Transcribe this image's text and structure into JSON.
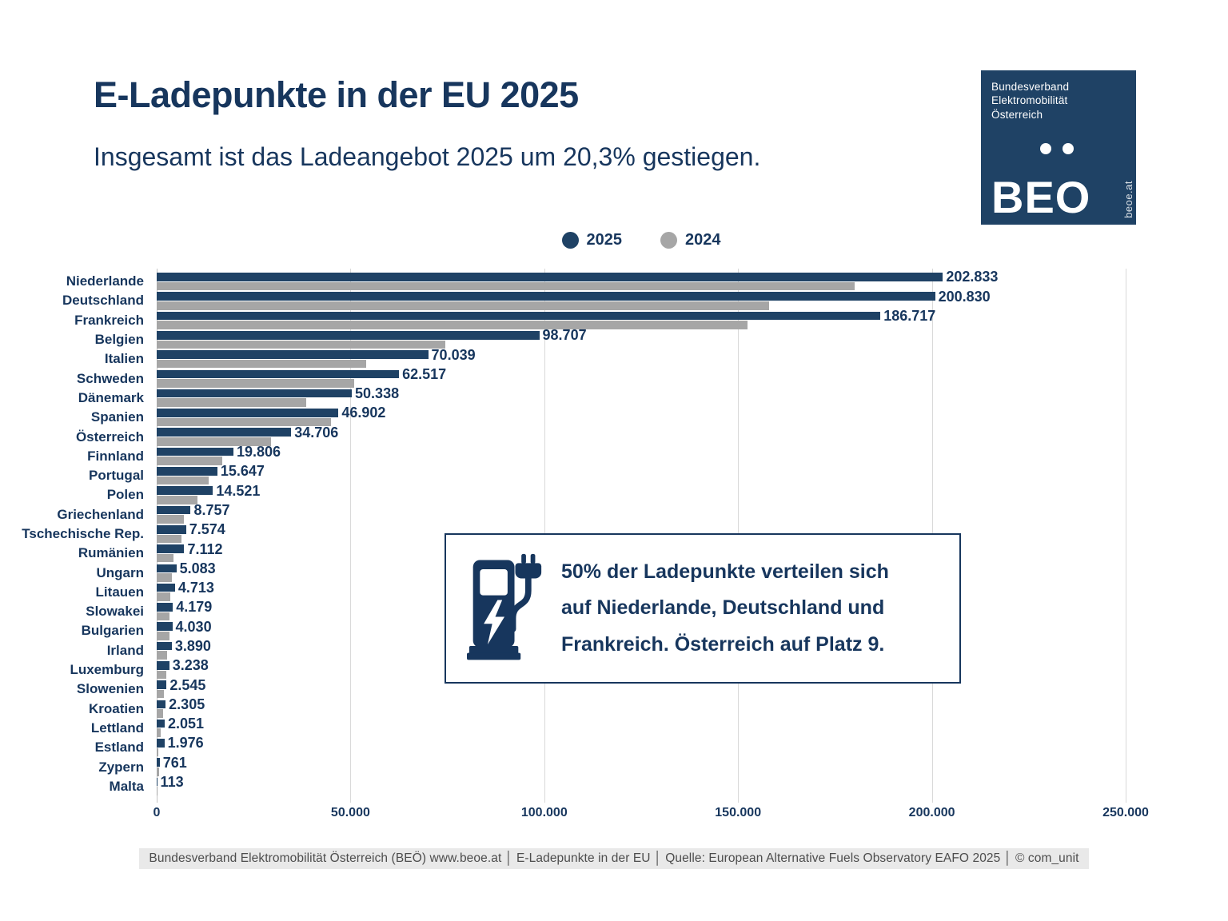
{
  "page": {
    "title": "E-Ladepunkte in der EU 2025",
    "subtitle": "Insgesamt ist das Ladeangebot 2025 um 20,3% gestiegen.",
    "footer": "Bundesverband Elektromobilität Österreich (BEÖ) www.beoe.at │ E-Ladepunkte in der EU │ Quelle: European Alternative Fuels Observatory EAFO 2025 │ © com_unit"
  },
  "logo": {
    "org_lines": [
      "Bundesverband",
      "Elektromobilität",
      "Österreich"
    ],
    "acronym": "BEO",
    "website": "beoe.at",
    "background": "#1f4265"
  },
  "legend": {
    "items": [
      {
        "label": "2025",
        "color": "#1f4265"
      },
      {
        "label": "2024",
        "color": "#a6a6a6"
      }
    ]
  },
  "callout": {
    "icon": "ev-charging-station-icon",
    "lines": [
      "50% der Ladepunkte verteilen sich",
      "auf Niederlande, Deutschland und",
      "Frankreich. Österreich auf Platz 9."
    ]
  },
  "colors": {
    "navy_text": "#17365d",
    "bar_2025": "#1f4265",
    "bar_2024": "#a6a6a6",
    "gridline": "#d9d9d9",
    "footer_bg": "#e9e9e9",
    "footer_text": "#4d4d4d"
  },
  "chart_data": {
    "type": "bar",
    "orientation": "horizontal",
    "title": "E-Ladepunkte in der EU 2025",
    "xlabel": "",
    "ylabel": "",
    "xlim": [
      0,
      250000
    ],
    "grid": "vertical",
    "legend_position": "top-center",
    "categories": [
      "Niederlande",
      "Deutschland",
      "Frankreich",
      "Belgien",
      "Italien",
      "Schweden",
      "Dänemark",
      "Spanien",
      "Österreich",
      "Finnland",
      "Portugal",
      "Polen",
      "Griechenland",
      "Tschechische Rep.",
      "Rumänien",
      "Ungarn",
      "Litauen",
      "Slowakei",
      "Bulgarien",
      "Irland",
      "Luxemburg",
      "Slowenien",
      "Kroatien",
      "Lettland",
      "Estland",
      "Zypern",
      "Malta"
    ],
    "series": [
      {
        "name": "2025",
        "color": "#1f4265",
        "values": [
          202833,
          200830,
          186717,
          98707,
          70039,
          62517,
          50338,
          46902,
          34706,
          19806,
          15647,
          14521,
          8757,
          7574,
          7112,
          5083,
          4713,
          4179,
          4030,
          3890,
          3238,
          2545,
          2305,
          2051,
          1976,
          761,
          113
        ],
        "labels": [
          "202.833",
          "200.830",
          "186.717",
          "98.707",
          "70.039",
          "62.517",
          "50.338",
          "46.902",
          "34.706",
          "19.806",
          "15.647",
          "14.521",
          "8.757",
          "7.574",
          "7.112",
          "5.083",
          "4.713",
          "4.179",
          "4.030",
          "3.890",
          "3.238",
          "2.545",
          "2.305",
          "2.051",
          "1.976",
          "761",
          "113"
        ]
      },
      {
        "name": "2024",
        "color": "#a6a6a6",
        "values_estimated_from_bars": true,
        "values": [
          180000,
          158000,
          152500,
          74500,
          54000,
          51000,
          38500,
          45000,
          29500,
          17000,
          13500,
          10500,
          7000,
          6400,
          4400,
          3900,
          3500,
          3200,
          3400,
          2700,
          2500,
          1900,
          1700,
          1100,
          450,
          600,
          100
        ]
      }
    ],
    "x_ticks": {
      "values": [
        0,
        50000,
        100000,
        150000,
        200000,
        250000
      ],
      "labels": [
        "0",
        "50.000",
        "100.000",
        "150.000",
        "200.000",
        "250.000"
      ]
    },
    "value_labels_on": "2025"
  }
}
